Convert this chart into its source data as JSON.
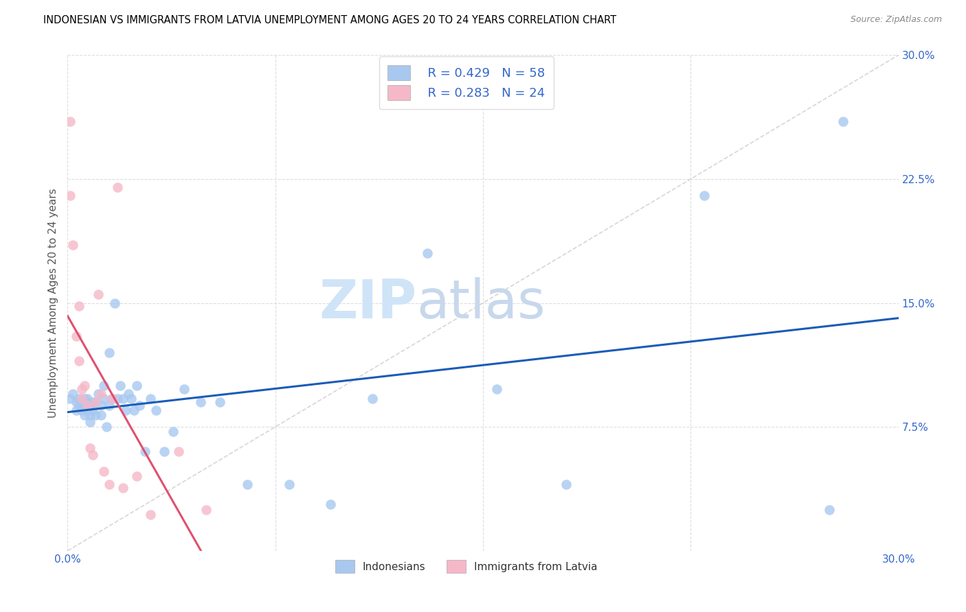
{
  "title": "INDONESIAN VS IMMIGRANTS FROM LATVIA UNEMPLOYMENT AMONG AGES 20 TO 24 YEARS CORRELATION CHART",
  "source": "Source: ZipAtlas.com",
  "ylabel": "Unemployment Among Ages 20 to 24 years",
  "xlim": [
    0.0,
    0.3
  ],
  "ylim": [
    0.0,
    0.3
  ],
  "xtick_pos": [
    0.0,
    0.075,
    0.15,
    0.225,
    0.3
  ],
  "xtick_labels": [
    "0.0%",
    "",
    "",
    "",
    "30.0%"
  ],
  "ytick_pos": [
    0.0,
    0.075,
    0.15,
    0.225,
    0.3
  ],
  "ytick_labels": [
    "",
    "7.5%",
    "15.0%",
    "22.5%",
    "30.0%"
  ],
  "r_blue": 0.429,
  "n_blue": 58,
  "r_pink": 0.283,
  "n_pink": 24,
  "blue_color": "#A8C8F0",
  "pink_color": "#F5B8C8",
  "blue_line_color": "#1A5CB8",
  "pink_line_color": "#E05070",
  "gray_dash_color": "#CCCCCC",
  "legend_label_blue": "Indonesians",
  "legend_label_pink": "Immigrants from Latvia",
  "blue_scatter_x": [
    0.001,
    0.002,
    0.003,
    0.003,
    0.004,
    0.004,
    0.005,
    0.005,
    0.005,
    0.006,
    0.006,
    0.007,
    0.007,
    0.007,
    0.008,
    0.008,
    0.008,
    0.009,
    0.009,
    0.01,
    0.01,
    0.011,
    0.012,
    0.012,
    0.013,
    0.013,
    0.014,
    0.015,
    0.015,
    0.016,
    0.017,
    0.018,
    0.019,
    0.02,
    0.021,
    0.022,
    0.023,
    0.024,
    0.025,
    0.026,
    0.028,
    0.03,
    0.032,
    0.035,
    0.038,
    0.042,
    0.048,
    0.055,
    0.065,
    0.08,
    0.095,
    0.11,
    0.13,
    0.155,
    0.18,
    0.23,
    0.275,
    0.28
  ],
  "blue_scatter_y": [
    0.092,
    0.095,
    0.09,
    0.085,
    0.092,
    0.088,
    0.09,
    0.088,
    0.085,
    0.092,
    0.082,
    0.09,
    0.085,
    0.092,
    0.088,
    0.082,
    0.078,
    0.09,
    0.085,
    0.09,
    0.082,
    0.095,
    0.088,
    0.082,
    0.1,
    0.092,
    0.075,
    0.088,
    0.12,
    0.092,
    0.15,
    0.092,
    0.1,
    0.092,
    0.085,
    0.095,
    0.092,
    0.085,
    0.1,
    0.088,
    0.06,
    0.092,
    0.085,
    0.06,
    0.072,
    0.098,
    0.09,
    0.09,
    0.04,
    0.04,
    0.028,
    0.092,
    0.18,
    0.098,
    0.04,
    0.215,
    0.025,
    0.26
  ],
  "pink_scatter_x": [
    0.001,
    0.001,
    0.002,
    0.003,
    0.004,
    0.004,
    0.005,
    0.005,
    0.006,
    0.007,
    0.008,
    0.009,
    0.01,
    0.011,
    0.012,
    0.013,
    0.015,
    0.016,
    0.018,
    0.02,
    0.025,
    0.03,
    0.04,
    0.05
  ],
  "pink_scatter_y": [
    0.26,
    0.215,
    0.185,
    0.13,
    0.115,
    0.148,
    0.098,
    0.092,
    0.1,
    0.088,
    0.062,
    0.058,
    0.09,
    0.155,
    0.095,
    0.048,
    0.04,
    0.092,
    0.22,
    0.038,
    0.045,
    0.022,
    0.06,
    0.025
  ],
  "watermark_zip": "ZIP",
  "watermark_atlas": "atlas",
  "watermark_color": "#D0E4F8"
}
